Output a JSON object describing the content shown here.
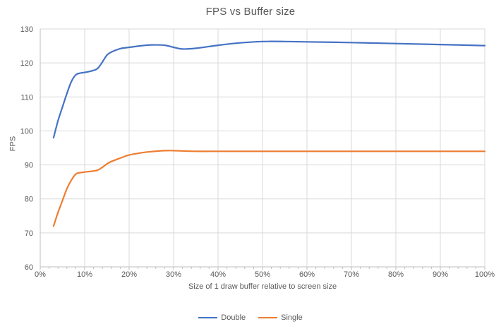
{
  "chart_data": {
    "type": "line",
    "title": "FPS vs Buffer size",
    "xlabel": "Size of 1 draw buffer relative to screen size",
    "ylabel": "FPS",
    "xlim": [
      0,
      100
    ],
    "ylim": [
      60,
      130
    ],
    "x_major_tick_step": 10,
    "x_minor_tick_step": 2,
    "y_tick_step": 10,
    "x_tick_suffix": "%",
    "grid": true,
    "legend_position": "bottom",
    "x": [
      3,
      4,
      5,
      6,
      7,
      8,
      9,
      10,
      12,
      13,
      14,
      15,
      16,
      18,
      20,
      23,
      25,
      28,
      30,
      32,
      35,
      40,
      45,
      50,
      55,
      60,
      70,
      80,
      90,
      100
    ],
    "series": [
      {
        "name": "Double",
        "color": "#4472C4",
        "values": [
          98,
          103,
          107,
          111,
          114.5,
          116.5,
          117,
          117.2,
          117.8,
          118.5,
          120.3,
          122.3,
          123.2,
          124.2,
          124.6,
          125.1,
          125.3,
          125.2,
          124.6,
          124.1,
          124.3,
          125.2,
          125.9,
          126.3,
          126.3,
          126.2,
          126,
          125.7,
          125.4,
          125.1
        ]
      },
      {
        "name": "Single",
        "color": "#ED7D31",
        "values": [
          72,
          76,
          79.5,
          83,
          85.5,
          87.3,
          87.7,
          87.9,
          88.2,
          88.5,
          89.3,
          90.3,
          91,
          92,
          92.9,
          93.6,
          93.9,
          94.2,
          94.2,
          94.1,
          94,
          94,
          94,
          94,
          94,
          94,
          94,
          94,
          94,
          94
        ]
      }
    ]
  },
  "colors": {
    "gridline": "#D9D9D9",
    "axis_line": "#BFBFBF",
    "tick_text": "#595959",
    "title_text": "#595959",
    "background": "#FFFFFF"
  }
}
